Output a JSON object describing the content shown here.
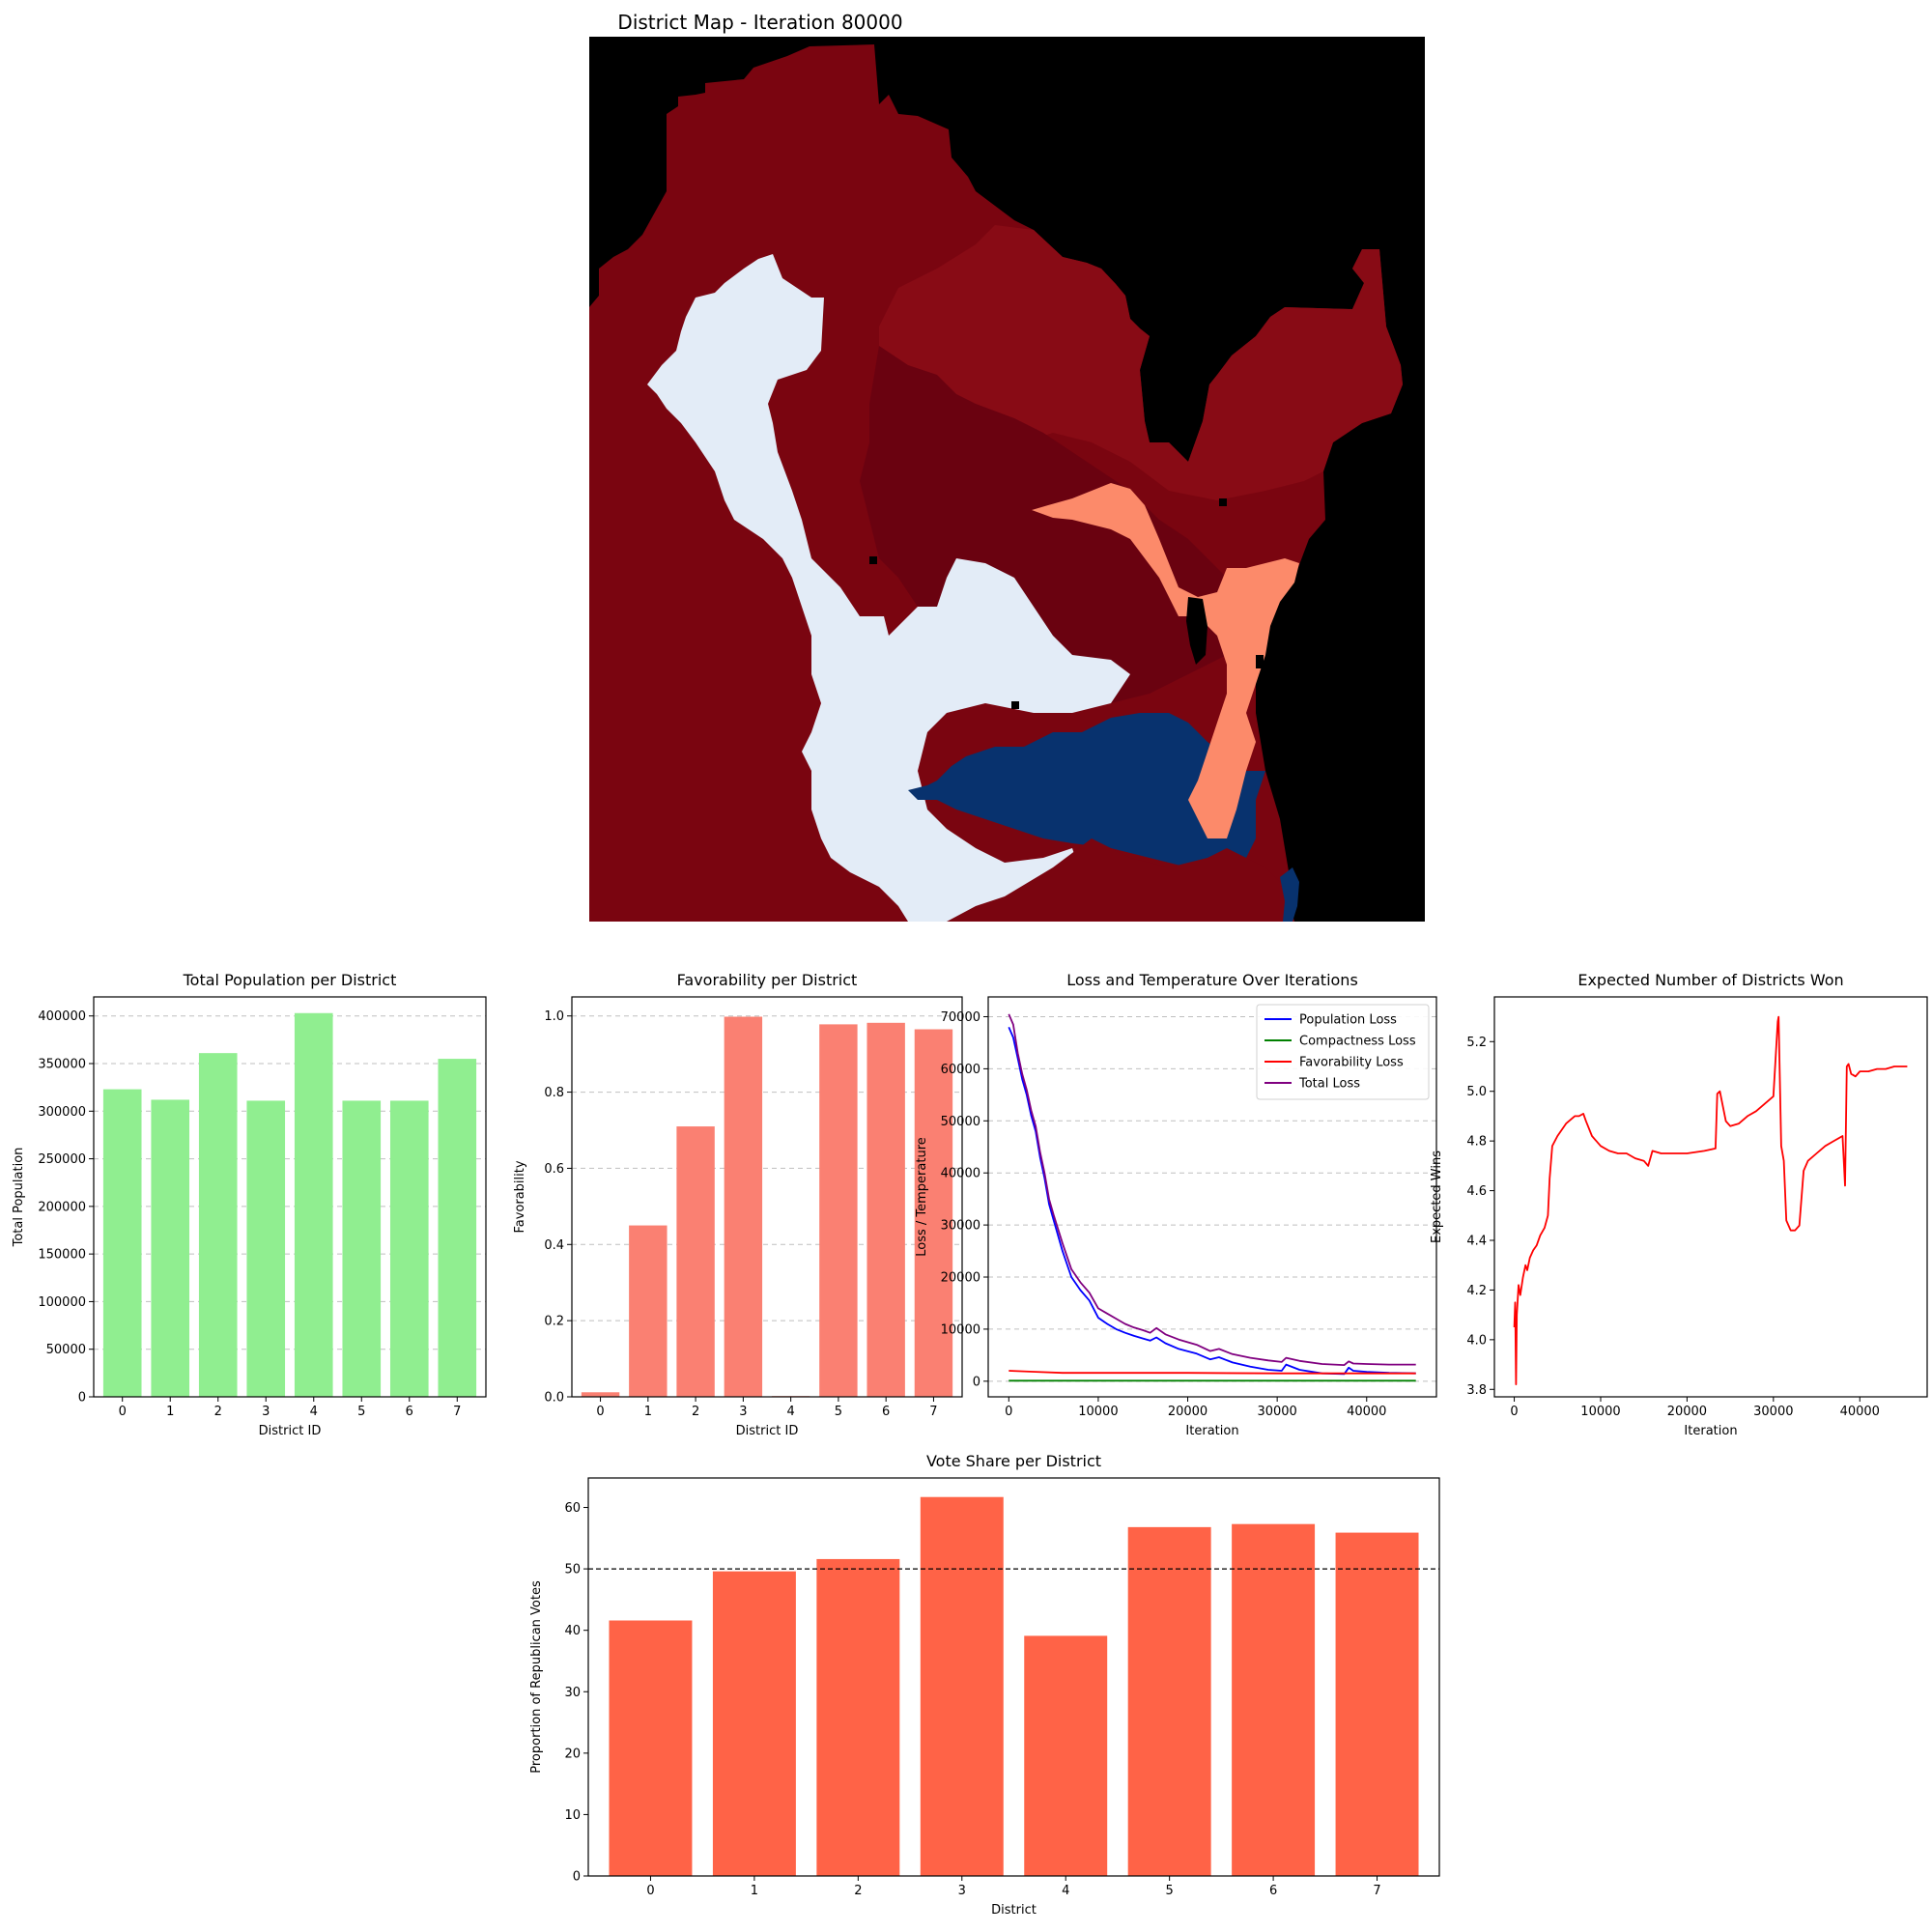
{
  "figure": {
    "background": "#ffffff"
  },
  "map": {
    "title": "District Map - Iteration 80000",
    "description": "",
    "colors": {
      "background": "#000000",
      "dark_red": "#7a0510",
      "red": "#880b15",
      "maroon": "#6a0210",
      "light_blue": "#e3ecf7",
      "navy": "#08326e",
      "salmon": "#fc8a6a"
    }
  },
  "chart_data": [
    {
      "id": "population",
      "type": "bar",
      "title": "Total Population per District",
      "xlabel": "District ID",
      "ylabel": "Total Population",
      "categories": [
        "0",
        "1",
        "2",
        "3",
        "4",
        "5",
        "6",
        "7"
      ],
      "values": [
        323000,
        312000,
        361000,
        311000,
        403000,
        311000,
        311000,
        355000
      ],
      "ylim": [
        0,
        420000
      ],
      "yticks": [
        0,
        50000,
        100000,
        150000,
        200000,
        250000,
        300000,
        350000,
        400000
      ],
      "ytick_labels": [
        "0",
        "50000",
        "100000",
        "150000",
        "200000",
        "250000",
        "300000",
        "350000",
        "400000"
      ],
      "color": "#90ee90",
      "grid": "y-dashed"
    },
    {
      "id": "favorability",
      "type": "bar",
      "title": "Favorability per District",
      "xlabel": "District ID",
      "ylabel": "Favorability",
      "categories": [
        "0",
        "1",
        "2",
        "3",
        "4",
        "5",
        "6",
        "7"
      ],
      "values": [
        0.012,
        0.45,
        0.71,
        0.998,
        0.002,
        0.978,
        0.982,
        0.965
      ],
      "ylim": [
        0,
        1.05
      ],
      "yticks": [
        0,
        0.2,
        0.4,
        0.6,
        0.8,
        1.0
      ],
      "ytick_labels": [
        "0.0",
        "0.2",
        "0.4",
        "0.6",
        "0.8",
        "1.0"
      ],
      "color": "#fa8072",
      "grid": "y-dashed"
    },
    {
      "id": "loss",
      "type": "line",
      "title": "Loss and Temperature Over Iterations",
      "xlabel": "Iteration",
      "ylabel": "Loss / Temperature",
      "xlim": [
        -2300,
        47800
      ],
      "ylim": [
        -3000,
        73800
      ],
      "xticks": [
        0,
        10000,
        20000,
        30000,
        40000
      ],
      "xtick_labels": [
        "0",
        "10000",
        "20000",
        "30000",
        "40000"
      ],
      "yticks": [
        0,
        10000,
        20000,
        30000,
        40000,
        50000,
        60000,
        70000
      ],
      "ytick_labels": [
        "0",
        "10000",
        "20000",
        "30000",
        "40000",
        "50000",
        "60000",
        "70000"
      ],
      "grid": "y-dashed",
      "legend": "top-right",
      "series": [
        {
          "name": "Population Loss",
          "color": "#0000ff",
          "x": [
            0,
            500,
            1000,
            1500,
            2000,
            2500,
            3000,
            3500,
            4000,
            4500,
            5000,
            6000,
            7000,
            8000,
            9000,
            10000,
            11000,
            12000,
            13000,
            14000,
            15000,
            15800,
            16500,
            17500,
            19000,
            21000,
            22500,
            23500,
            25000,
            27000,
            29000,
            30500,
            31000,
            32500,
            35000,
            37500,
            38000,
            38500,
            40000,
            42500,
            45500
          ],
          "y": [
            68000,
            66000,
            62000,
            58000,
            55000,
            51000,
            48000,
            43000,
            39000,
            34000,
            31000,
            25000,
            20000,
            17500,
            15500,
            12200,
            11000,
            10000,
            9300,
            8700,
            8200,
            7800,
            8400,
            7300,
            6200,
            5300,
            4200,
            4600,
            3600,
            2800,
            2200,
            2000,
            3200,
            2200,
            1500,
            1400,
            2600,
            2000,
            1800,
            1600,
            1500
          ]
        },
        {
          "name": "Compactness Loss",
          "color": "#008000",
          "x": [
            0,
            10000,
            20000,
            30000,
            40000,
            45500
          ],
          "y": [
            100,
            100,
            100,
            100,
            100,
            100
          ]
        },
        {
          "name": "Favorability Loss",
          "color": "#ff0000",
          "x": [
            0,
            3000,
            6000,
            10000,
            20000,
            30000,
            40000,
            45500
          ],
          "y": [
            2000,
            1800,
            1600,
            1600,
            1600,
            1500,
            1500,
            1500
          ]
        },
        {
          "name": "Total Loss",
          "color": "#800080",
          "x": [
            0,
            500,
            1000,
            1500,
            2000,
            2500,
            3000,
            3500,
            4000,
            4500,
            5000,
            6000,
            7000,
            8000,
            9000,
            10000,
            11000,
            12000,
            13000,
            14000,
            15000,
            15800,
            16500,
            17500,
            19000,
            21000,
            22500,
            23500,
            25000,
            27000,
            29000,
            30500,
            31000,
            32500,
            35000,
            37500,
            38000,
            38500,
            40000,
            42500,
            45500
          ],
          "y": [
            70500,
            68500,
            63000,
            59000,
            56000,
            52000,
            49000,
            44000,
            40000,
            35000,
            32000,
            26500,
            21500,
            19000,
            17000,
            14000,
            13000,
            12000,
            11000,
            10300,
            9800,
            9300,
            10200,
            9000,
            8000,
            7000,
            5800,
            6200,
            5200,
            4500,
            4000,
            3700,
            4500,
            3900,
            3300,
            3100,
            3800,
            3400,
            3300,
            3200,
            3200
          ]
        }
      ]
    },
    {
      "id": "expected_wins",
      "type": "line",
      "title": "Expected Number of Districts Won",
      "xlabel": "Iteration",
      "ylabel": "Expected Wins",
      "xlim": [
        -2300,
        47800
      ],
      "ylim": [
        3.77,
        5.38
      ],
      "xticks": [
        0,
        10000,
        20000,
        30000,
        40000
      ],
      "xtick_labels": [
        "0",
        "10000",
        "20000",
        "30000",
        "40000"
      ],
      "yticks": [
        3.8,
        4.0,
        4.2,
        4.4,
        4.6,
        4.8,
        5.0,
        5.2
      ],
      "ytick_labels": [
        "3.8",
        "4.0",
        "4.2",
        "4.4",
        "4.6",
        "4.8",
        "5.0",
        "5.2"
      ],
      "series": [
        {
          "color": "#ff0000",
          "x": [
            0,
            100,
            200,
            300,
            500,
            700,
            1000,
            1300,
            1500,
            1800,
            2200,
            2600,
            3000,
            3500,
            3900,
            4100,
            4400,
            5000,
            6000,
            7000,
            7500,
            8000,
            8300,
            9000,
            10000,
            11000,
            12000,
            13000,
            14000,
            15000,
            15500,
            16000,
            17000,
            18000,
            20000,
            22000,
            23300,
            23500,
            23800,
            24500,
            25000,
            26000,
            27000,
            28000,
            29000,
            30000,
            30500,
            30600,
            30900,
            31200,
            31500,
            32000,
            32500,
            33000,
            33500,
            34000,
            35000,
            36000,
            37000,
            38000,
            38300,
            38500,
            38700,
            39000,
            39500,
            40000,
            41000,
            42000,
            43000,
            44000,
            45500
          ],
          "y": [
            4.05,
            4.15,
            3.82,
            4.1,
            4.22,
            4.18,
            4.25,
            4.3,
            4.28,
            4.33,
            4.36,
            4.38,
            4.42,
            4.45,
            4.5,
            4.65,
            4.78,
            4.82,
            4.87,
            4.9,
            4.9,
            4.91,
            4.88,
            4.82,
            4.78,
            4.76,
            4.75,
            4.75,
            4.73,
            4.72,
            4.7,
            4.76,
            4.75,
            4.75,
            4.75,
            4.76,
            4.77,
            4.99,
            5.0,
            4.88,
            4.86,
            4.87,
            4.9,
            4.92,
            4.95,
            4.98,
            5.28,
            5.3,
            4.78,
            4.72,
            4.48,
            4.44,
            4.44,
            4.46,
            4.68,
            4.72,
            4.75,
            4.78,
            4.8,
            4.82,
            4.62,
            5.1,
            5.11,
            5.07,
            5.06,
            5.08,
            5.08,
            5.09,
            5.09,
            5.1,
            5.1
          ]
        }
      ]
    },
    {
      "id": "vote_share",
      "type": "bar",
      "title": "Vote Share per District",
      "xlabel": "District",
      "ylabel": "Proportion of Republican Votes",
      "categories": [
        "0",
        "1",
        "2",
        "3",
        "4",
        "5",
        "6",
        "7"
      ],
      "values": [
        41.6,
        49.6,
        51.6,
        61.7,
        39.1,
        56.8,
        57.3,
        55.9
      ],
      "ylim": [
        0,
        64.8
      ],
      "yticks": [
        0,
        10,
        20,
        30,
        40,
        50,
        60
      ],
      "ytick_labels": [
        "0",
        "10",
        "20",
        "30",
        "40",
        "50",
        "60"
      ],
      "threshold": 50,
      "color": "#ff6347"
    }
  ]
}
